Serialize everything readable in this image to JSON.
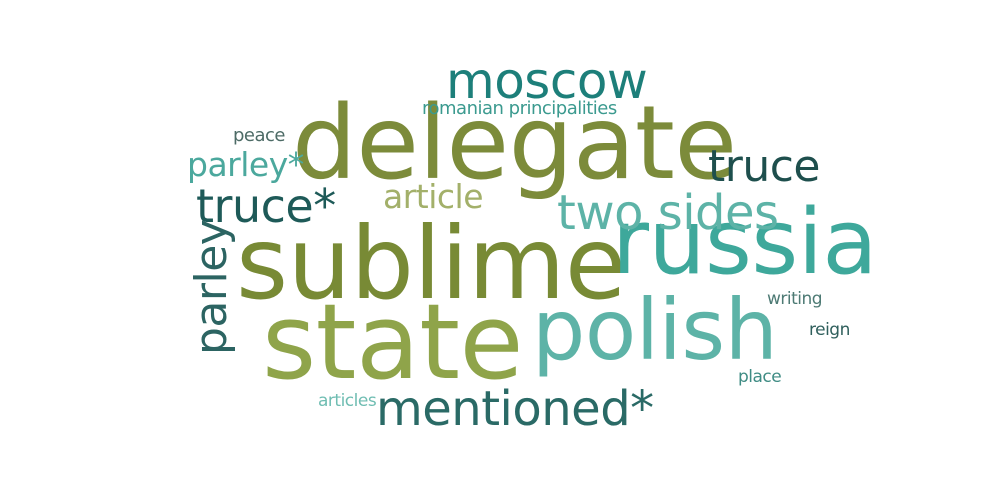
{
  "word_cloud": {
    "words": {
      "delegate": {
        "text": "delegate",
        "color": "#7c8b3a"
      },
      "sublime": {
        "text": "sublime",
        "color": "#788a35"
      },
      "state": {
        "text": "state",
        "color": "#8fa44a"
      },
      "russia": {
        "text": "russia",
        "color": "#3ea89b"
      },
      "polish": {
        "text": "polish",
        "color": "#5db3a7"
      },
      "moscow": {
        "text": "moscow",
        "color": "#1d7f7a"
      },
      "mentioned": {
        "text": "mentioned*",
        "color": "#2a6a66"
      },
      "two_sides": {
        "text": "two sides",
        "color": "#5db3a7"
      },
      "truce_star": {
        "text": "truce*",
        "color": "#1e5a58"
      },
      "truce": {
        "text": "truce",
        "color": "#1e4f4d"
      },
      "parley": {
        "text": "parley",
        "color": "#2c6462"
      },
      "parley_star": {
        "text": "parley*",
        "color": "#4ba89d"
      },
      "article": {
        "text": "article",
        "color": "#a3b06a"
      },
      "romanian": {
        "text": "romanian principalities",
        "color": "#3b9a8f"
      },
      "peace": {
        "text": "peace",
        "color": "#4d6b66"
      },
      "writing": {
        "text": "writing",
        "color": "#4d7a74"
      },
      "reign": {
        "text": "reign",
        "color": "#2f5f5c"
      },
      "place": {
        "text": "place",
        "color": "#3f8c84"
      },
      "articles": {
        "text": "articles",
        "color": "#6fbdb2"
      }
    }
  }
}
